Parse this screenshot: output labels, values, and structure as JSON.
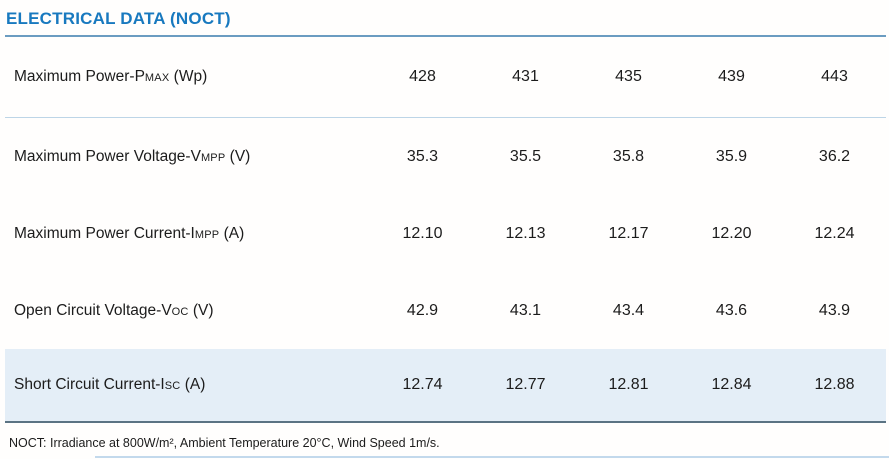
{
  "page": {
    "title": "ELECTRICAL DATA (NOCT)",
    "footnote": "NOCT: Irradiance at 800W/m², Ambient Temperature 20°C, Wind Speed 1m/s.",
    "accent_color": "#1879bf",
    "shaded_row_color": "#e4eef7"
  },
  "table": {
    "rows": [
      {
        "label_main": "Maximum Power-P",
        "label_sub": "MAX",
        "label_unit": " (Wp)",
        "values": [
          "428",
          "431",
          "435",
          "439",
          "443"
        ]
      },
      {
        "label_main": "Maximum Power Voltage-V",
        "label_sub": "MPP",
        "label_unit": " (V)",
        "values": [
          "35.3",
          "35.5",
          "35.8",
          "35.9",
          "36.2"
        ]
      },
      {
        "label_main": "Maximum Power Current-I",
        "label_sub": "MPP",
        "label_unit": " (A)",
        "values": [
          "12.10",
          "12.13",
          "12.17",
          "12.20",
          "12.24"
        ]
      },
      {
        "label_main": "Open Circuit Voltage-V",
        "label_sub": "OC",
        "label_unit": " (V)",
        "values": [
          "42.9",
          "43.1",
          "43.4",
          "43.6",
          "43.9"
        ]
      },
      {
        "label_main": "Short Circuit Current-I",
        "label_sub": "SC",
        "label_unit": " (A)",
        "values": [
          "12.74",
          "12.77",
          "12.81",
          "12.84",
          "12.88"
        ]
      }
    ]
  }
}
